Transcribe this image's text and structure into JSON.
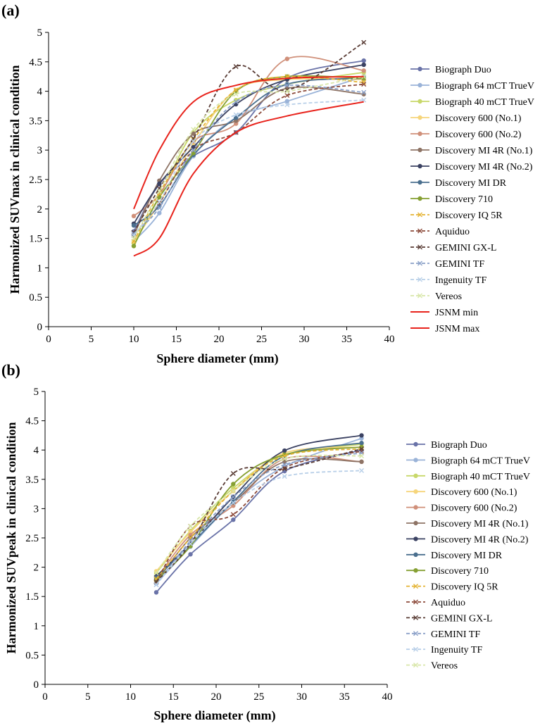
{
  "chart_data": [
    {
      "type": "line",
      "panel_label": "(a)",
      "title": "",
      "xlabel": "Sphere diameter (mm)",
      "ylabel": "Harmonized SUVmax in clinical condition",
      "xlim": [
        0,
        40
      ],
      "ylim": [
        0,
        5
      ],
      "xticks": [
        "0",
        "5",
        "10",
        "15",
        "20",
        "25",
        "30",
        "35",
        "40"
      ],
      "yticks": [
        "0",
        "0.5",
        "1",
        "1.5",
        "2",
        "2.5",
        "3",
        "3.5",
        "4",
        "4.5",
        "5"
      ],
      "x": [
        10,
        13,
        17,
        22,
        28,
        37
      ],
      "grid": false,
      "legend_position": "right",
      "series": [
        {
          "name": "Biograph Duo",
          "color": "#6a73a8",
          "style": "solid",
          "marker": "circle",
          "values": [
            1.62,
            2.42,
            2.9,
            3.3,
            4.22,
            4.52
          ]
        },
        {
          "name": "Biograph 64 mCT TrueV",
          "color": "#9ab3d8",
          "style": "solid",
          "marker": "circle",
          "values": [
            1.45,
            1.93,
            2.9,
            3.55,
            3.83,
            4.25
          ]
        },
        {
          "name": "Biograph 40 mCT TrueV",
          "color": "#c8d86a",
          "style": "solid",
          "marker": "circle",
          "values": [
            1.42,
            2.2,
            3.3,
            3.85,
            4.12,
            4.32
          ]
        },
        {
          "name": "Discovery 600 (No.1)",
          "color": "#f6d57b",
          "style": "solid",
          "marker": "circle",
          "values": [
            1.45,
            2.1,
            3.1,
            4.02,
            4.2,
            4.2
          ]
        },
        {
          "name": "Discovery 600 (No.2)",
          "color": "#d0907a",
          "style": "solid",
          "marker": "circle",
          "values": [
            1.88,
            2.25,
            3.15,
            3.45,
            4.55,
            4.35
          ]
        },
        {
          "name": "Discovery MI 4R (No.1)",
          "color": "#8e7466",
          "style": "solid",
          "marker": "circle",
          "values": [
            1.55,
            2.48,
            3.28,
            3.5,
            4.05,
            3.95
          ]
        },
        {
          "name": "Discovery MI 4R (No.2)",
          "color": "#3b4262",
          "style": "solid",
          "marker": "circle",
          "values": [
            1.75,
            2.43,
            3.05,
            3.78,
            4.2,
            4.45
          ]
        },
        {
          "name": "Discovery MI DR",
          "color": "#4a6f8e",
          "style": "solid",
          "marker": "circle",
          "values": [
            1.72,
            2.05,
            2.92,
            3.55,
            4.12,
            4.22
          ]
        },
        {
          "name": "Discovery 710",
          "color": "#86a033",
          "style": "solid",
          "marker": "circle",
          "values": [
            1.37,
            2.2,
            2.95,
            4.0,
            4.25,
            4.22
          ]
        },
        {
          "name": "Discovery IQ 5R",
          "color": "#e4b333",
          "style": "dashed",
          "marker": "x",
          "values": [
            1.45,
            2.27,
            3.18,
            4.02,
            4.25,
            4.15
          ]
        },
        {
          "name": "Aquiduo",
          "color": "#8c4a3a",
          "style": "dashed",
          "marker": "x",
          "values": [
            1.55,
            2.1,
            3.0,
            3.3,
            3.93,
            4.12
          ]
        },
        {
          "name": "GEMINI GX-L",
          "color": "#5a3d36",
          "style": "dashed",
          "marker": "x",
          "values": [
            1.6,
            2.35,
            3.2,
            4.42,
            4.02,
            4.83
          ]
        },
        {
          "name": "GEMINI TF",
          "color": "#8aa0c8",
          "style": "dashed",
          "marker": "x",
          "values": [
            1.58,
            2.02,
            3.0,
            3.82,
            4.1,
            3.98
          ]
        },
        {
          "name": "Ingenuity TF",
          "color": "#b8cfe8",
          "style": "dashed",
          "marker": "x",
          "values": [
            1.55,
            2.12,
            3.15,
            3.6,
            3.77,
            3.85
          ]
        },
        {
          "name": "Vereos",
          "color": "#d8e6a8",
          "style": "dashed",
          "marker": "x",
          "values": [
            1.5,
            2.3,
            3.35,
            3.95,
            4.0,
            4.25
          ]
        },
        {
          "name": "JSNM min",
          "color": "#e8231c",
          "style": "solid",
          "marker": "none",
          "values": [
            1.2,
            1.5,
            2.6,
            3.3,
            3.58,
            3.82
          ]
        },
        {
          "name": "JSNM max",
          "color": "#e8231c",
          "style": "solid",
          "marker": "none",
          "values": [
            2.0,
            3.0,
            3.82,
            4.1,
            4.22,
            4.25
          ]
        }
      ]
    },
    {
      "type": "line",
      "panel_label": "(b)",
      "title": "",
      "xlabel": "Sphere diameter (mm)",
      "ylabel": "Harmonized SUVpeak in clinical condition",
      "xlim": [
        0,
        40
      ],
      "ylim": [
        0,
        5
      ],
      "xticks": [
        "0",
        "5",
        "10",
        "15",
        "20",
        "25",
        "30",
        "35",
        "40"
      ],
      "yticks": [
        "0",
        "0.5",
        "1",
        "1.5",
        "2",
        "2.5",
        "3",
        "3.5",
        "4",
        "4.5",
        "5"
      ],
      "x": [
        13,
        17,
        22,
        28,
        37
      ],
      "grid": false,
      "legend_position": "right",
      "series": [
        {
          "name": "Biograph Duo",
          "color": "#6a73a8",
          "style": "solid",
          "marker": "circle",
          "values": [
            1.57,
            2.22,
            2.81,
            3.64,
            4.0
          ]
        },
        {
          "name": "Biograph 64 mCT TrueV",
          "color": "#9ab3d8",
          "style": "solid",
          "marker": "circle",
          "values": [
            1.72,
            2.35,
            3.1,
            3.72,
            4.2
          ]
        },
        {
          "name": "Biograph 40 mCT TrueV",
          "color": "#c8d86a",
          "style": "solid",
          "marker": "circle",
          "values": [
            1.9,
            2.62,
            3.35,
            3.92,
            4.1
          ]
        },
        {
          "name": "Discovery 600 (No.1)",
          "color": "#f6d57b",
          "style": "solid",
          "marker": "circle",
          "values": [
            1.93,
            2.6,
            3.3,
            3.95,
            4.05
          ]
        },
        {
          "name": "Discovery 600 (No.2)",
          "color": "#d0907a",
          "style": "solid",
          "marker": "circle",
          "values": [
            1.8,
            2.55,
            3.05,
            3.85,
            3.8
          ]
        },
        {
          "name": "Discovery MI 4R (No.1)",
          "color": "#8e7466",
          "style": "solid",
          "marker": "circle",
          "values": [
            1.75,
            2.5,
            3.1,
            3.8,
            3.8
          ]
        },
        {
          "name": "Discovery MI 4R (No.2)",
          "color": "#3b4262",
          "style": "solid",
          "marker": "circle",
          "values": [
            1.85,
            2.4,
            3.2,
            3.99,
            4.25
          ]
        },
        {
          "name": "Discovery MI DR",
          "color": "#4a6f8e",
          "style": "solid",
          "marker": "circle",
          "values": [
            1.82,
            2.38,
            3.12,
            3.9,
            4.12
          ]
        },
        {
          "name": "Discovery 710",
          "color": "#86a033",
          "style": "solid",
          "marker": "circle",
          "values": [
            1.78,
            2.36,
            3.42,
            3.92,
            4.05
          ]
        },
        {
          "name": "Discovery IQ 5R",
          "color": "#e4b333",
          "style": "dashed",
          "marker": "x",
          "values": [
            1.8,
            2.5,
            3.3,
            3.9,
            4.02
          ]
        },
        {
          "name": "Aquiduo",
          "color": "#8c4a3a",
          "style": "dashed",
          "marker": "x",
          "values": [
            1.75,
            2.7,
            2.9,
            3.7,
            3.98
          ]
        },
        {
          "name": "GEMINI GX-L",
          "color": "#5a3d36",
          "style": "dashed",
          "marker": "x",
          "values": [
            1.75,
            2.4,
            3.6,
            3.68,
            4.02
          ]
        },
        {
          "name": "GEMINI TF",
          "color": "#8aa0c8",
          "style": "dashed",
          "marker": "x",
          "values": [
            1.7,
            2.45,
            3.2,
            3.75,
            3.95
          ]
        },
        {
          "name": "Ingenuity TF",
          "color": "#b8cfe8",
          "style": "dashed",
          "marker": "x",
          "values": [
            1.7,
            2.4,
            3.1,
            3.55,
            3.65
          ]
        },
        {
          "name": "Vereos",
          "color": "#d8e6a8",
          "style": "dashed",
          "marker": "x",
          "values": [
            1.9,
            2.7,
            3.3,
            3.85,
            3.9
          ]
        }
      ]
    }
  ]
}
